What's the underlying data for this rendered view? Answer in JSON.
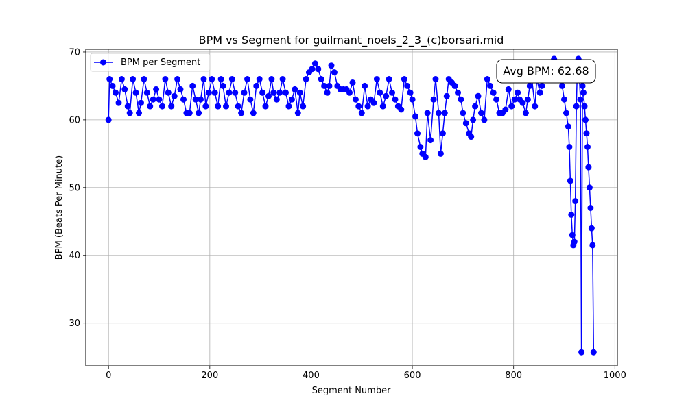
{
  "chart_data": {
    "type": "line",
    "title": "BPM vs Segment for guilmant_noels_2_3_(c)borsari.mid",
    "xlabel": "Segment Number",
    "ylabel": "BPM (Beats Per Minute)",
    "xlim": [
      -45,
      1005
    ],
    "ylim": [
      23.7,
      70.4
    ],
    "xticks": [
      0,
      200,
      400,
      600,
      800,
      1000
    ],
    "yticks": [
      30,
      40,
      50,
      60,
      70
    ],
    "grid": true,
    "legend_position": "top-left",
    "annotation": "Avg BPM: 62.68",
    "series": [
      {
        "name": "BPM per Segment",
        "color": "#0000ff",
        "marker": "circle",
        "points": [
          [
            0,
            60
          ],
          [
            2,
            66
          ],
          [
            8,
            65
          ],
          [
            14,
            64
          ],
          [
            20,
            62.5
          ],
          [
            26,
            66
          ],
          [
            32,
            64.5
          ],
          [
            38,
            62
          ],
          [
            42,
            61
          ],
          [
            48,
            66
          ],
          [
            54,
            64
          ],
          [
            60,
            61
          ],
          [
            64,
            62.5
          ],
          [
            70,
            66
          ],
          [
            76,
            64
          ],
          [
            82,
            62
          ],
          [
            88,
            63
          ],
          [
            94,
            64.5
          ],
          [
            100,
            63
          ],
          [
            106,
            62
          ],
          [
            112,
            66
          ],
          [
            118,
            64
          ],
          [
            124,
            62
          ],
          [
            130,
            63.5
          ],
          [
            136,
            66
          ],
          [
            142,
            64.5
          ],
          [
            148,
            63
          ],
          [
            154,
            61
          ],
          [
            160,
            61
          ],
          [
            166,
            65
          ],
          [
            172,
            63
          ],
          [
            178,
            61
          ],
          [
            182,
            63
          ],
          [
            188,
            66
          ],
          [
            192,
            62
          ],
          [
            198,
            64
          ],
          [
            204,
            66
          ],
          [
            210,
            64
          ],
          [
            216,
            62
          ],
          [
            222,
            66
          ],
          [
            226,
            65
          ],
          [
            232,
            62
          ],
          [
            238,
            64
          ],
          [
            244,
            66
          ],
          [
            250,
            64
          ],
          [
            256,
            62
          ],
          [
            262,
            61
          ],
          [
            268,
            64
          ],
          [
            274,
            66
          ],
          [
            280,
            63
          ],
          [
            286,
            61
          ],
          [
            292,
            65
          ],
          [
            298,
            66
          ],
          [
            304,
            64
          ],
          [
            310,
            62
          ],
          [
            316,
            63.5
          ],
          [
            322,
            66
          ],
          [
            326,
            64
          ],
          [
            332,
            63
          ],
          [
            338,
            64
          ],
          [
            344,
            66
          ],
          [
            350,
            64
          ],
          [
            356,
            62
          ],
          [
            362,
            63
          ],
          [
            368,
            64.5
          ],
          [
            374,
            61
          ],
          [
            378,
            64
          ],
          [
            384,
            62
          ],
          [
            390,
            66
          ],
          [
            396,
            67
          ],
          [
            402,
            67.5
          ],
          [
            408,
            68.3
          ],
          [
            414,
            67.5
          ],
          [
            420,
            66
          ],
          [
            426,
            65
          ],
          [
            432,
            64
          ],
          [
            436,
            65
          ],
          [
            440,
            68
          ],
          [
            446,
            67
          ],
          [
            452,
            65
          ],
          [
            458,
            64.5
          ],
          [
            464,
            64.5
          ],
          [
            470,
            64.5
          ],
          [
            476,
            64
          ],
          [
            482,
            65.5
          ],
          [
            488,
            63
          ],
          [
            494,
            62
          ],
          [
            500,
            61
          ],
          [
            506,
            65
          ],
          [
            512,
            62
          ],
          [
            518,
            63
          ],
          [
            524,
            62.5
          ],
          [
            530,
            66
          ],
          [
            536,
            64
          ],
          [
            542,
            62
          ],
          [
            548,
            63.5
          ],
          [
            554,
            66
          ],
          [
            560,
            64
          ],
          [
            566,
            63
          ],
          [
            572,
            62
          ],
          [
            578,
            61.5
          ],
          [
            584,
            66
          ],
          [
            590,
            65
          ],
          [
            596,
            64
          ],
          [
            600,
            63
          ],
          [
            606,
            60.5
          ],
          [
            610,
            58
          ],
          [
            616,
            56
          ],
          [
            620,
            55
          ],
          [
            626,
            54.5
          ],
          [
            630,
            61
          ],
          [
            636,
            57
          ],
          [
            642,
            63
          ],
          [
            646,
            66
          ],
          [
            652,
            61
          ],
          [
            656,
            55
          ],
          [
            660,
            58
          ],
          [
            664,
            61
          ],
          [
            668,
            63.5
          ],
          [
            672,
            66
          ],
          [
            678,
            65.5
          ],
          [
            684,
            65
          ],
          [
            690,
            64
          ],
          [
            696,
            63
          ],
          [
            700,
            61
          ],
          [
            706,
            59.5
          ],
          [
            712,
            58
          ],
          [
            716,
            57.5
          ],
          [
            720,
            60
          ],
          [
            724,
            62
          ],
          [
            730,
            63.5
          ],
          [
            736,
            61
          ],
          [
            742,
            60
          ],
          [
            748,
            66
          ],
          [
            754,
            65
          ],
          [
            760,
            64
          ],
          [
            766,
            63
          ],
          [
            772,
            61
          ],
          [
            778,
            61
          ],
          [
            784,
            61.5
          ],
          [
            790,
            64.5
          ],
          [
            796,
            62
          ],
          [
            802,
            63
          ],
          [
            808,
            64
          ],
          [
            812,
            63
          ],
          [
            818,
            62.5
          ],
          [
            824,
            61
          ],
          [
            828,
            63
          ],
          [
            832,
            65
          ],
          [
            836,
            66
          ],
          [
            842,
            62
          ],
          [
            846,
            66
          ],
          [
            852,
            64
          ],
          [
            856,
            65
          ],
          [
            862,
            66
          ],
          [
            868,
            67
          ],
          [
            874,
            68
          ],
          [
            880,
            69
          ],
          [
            886,
            68
          ],
          [
            892,
            66
          ],
          [
            896,
            65
          ],
          [
            900,
            63
          ],
          [
            904,
            61
          ],
          [
            908,
            59
          ],
          [
            910,
            56
          ],
          [
            912,
            51
          ],
          [
            914,
            46
          ],
          [
            916,
            43
          ],
          [
            918,
            41.5
          ],
          [
            920,
            42
          ],
          [
            922,
            48
          ],
          [
            924,
            62
          ],
          [
            926,
            68
          ],
          [
            928,
            69
          ],
          [
            930,
            66
          ],
          [
            932,
            63
          ],
          [
            934,
            25.7
          ],
          [
            936,
            65
          ],
          [
            938,
            64
          ],
          [
            940,
            62
          ],
          [
            942,
            60
          ],
          [
            944,
            58
          ],
          [
            946,
            56
          ],
          [
            948,
            53
          ],
          [
            950,
            50
          ],
          [
            952,
            47
          ],
          [
            954,
            44
          ],
          [
            956,
            41.5
          ],
          [
            958,
            25.7
          ]
        ]
      }
    ]
  }
}
